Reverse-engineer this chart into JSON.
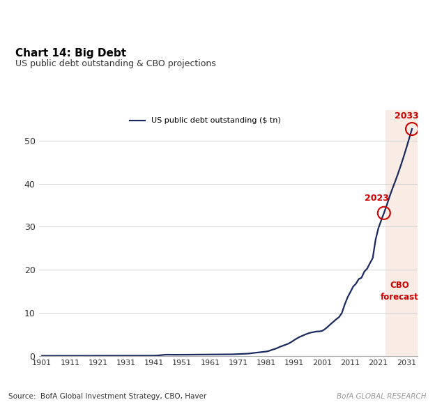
{
  "title": "Chart 14: Big Debt",
  "subtitle": "US public debt outstanding & CBO projections",
  "legend_label": "US public debt outstanding ($ tn)",
  "source_text": "Source:  BofA Global Investment Strategy, CBO, Haver",
  "brand_text": "BofA GLOBAL RESEARCH",
  "line_color": "#1a2a5e",
  "forecast_bg_color": "#f9ece4",
  "forecast_start_year": 2024,
  "annotation_color": "#cc0000",
  "cbo_label": "CBO\nforecast",
  "ylim": [
    0,
    57
  ],
  "yticks": [
    0,
    10,
    20,
    30,
    40,
    50
  ],
  "xlim": [
    1900,
    2035
  ],
  "xtick_years": [
    1901,
    1911,
    1921,
    1931,
    1941,
    1951,
    1961,
    1971,
    1981,
    1991,
    2001,
    2011,
    2021,
    2031
  ],
  "data_years": [
    1901,
    1902,
    1903,
    1904,
    1905,
    1906,
    1907,
    1908,
    1909,
    1910,
    1911,
    1912,
    1913,
    1914,
    1915,
    1916,
    1917,
    1918,
    1919,
    1920,
    1921,
    1922,
    1923,
    1924,
    1925,
    1926,
    1927,
    1928,
    1929,
    1930,
    1931,
    1932,
    1933,
    1934,
    1935,
    1936,
    1937,
    1938,
    1939,
    1940,
    1941,
    1942,
    1943,
    1944,
    1945,
    1946,
    1947,
    1948,
    1949,
    1950,
    1951,
    1952,
    1953,
    1954,
    1955,
    1956,
    1957,
    1958,
    1959,
    1960,
    1961,
    1962,
    1963,
    1964,
    1965,
    1966,
    1967,
    1968,
    1969,
    1970,
    1971,
    1972,
    1973,
    1974,
    1975,
    1976,
    1977,
    1978,
    1979,
    1980,
    1981,
    1982,
    1983,
    1984,
    1985,
    1986,
    1987,
    1988,
    1989,
    1990,
    1991,
    1992,
    1993,
    1994,
    1995,
    1996,
    1997,
    1998,
    1999,
    2000,
    2001,
    2002,
    2003,
    2004,
    2005,
    2006,
    2007,
    2008,
    2009,
    2010,
    2011,
    2012,
    2013,
    2014,
    2015,
    2016,
    2017,
    2018,
    2019,
    2020,
    2021,
    2022,
    2023,
    2024,
    2025,
    2026,
    2027,
    2028,
    2029,
    2030,
    2031,
    2032,
    2033
  ],
  "data_values": [
    0.003,
    0.003,
    0.003,
    0.003,
    0.003,
    0.003,
    0.003,
    0.003,
    0.003,
    0.003,
    0.003,
    0.003,
    0.003,
    0.003,
    0.004,
    0.004,
    0.006,
    0.012,
    0.025,
    0.024,
    0.024,
    0.023,
    0.022,
    0.021,
    0.021,
    0.02,
    0.018,
    0.017,
    0.017,
    0.016,
    0.017,
    0.02,
    0.023,
    0.027,
    0.029,
    0.034,
    0.037,
    0.038,
    0.041,
    0.043,
    0.049,
    0.072,
    0.137,
    0.202,
    0.259,
    0.271,
    0.259,
    0.253,
    0.253,
    0.257,
    0.255,
    0.267,
    0.266,
    0.271,
    0.274,
    0.273,
    0.272,
    0.28,
    0.286,
    0.291,
    0.293,
    0.303,
    0.31,
    0.317,
    0.323,
    0.33,
    0.341,
    0.348,
    0.354,
    0.381,
    0.409,
    0.436,
    0.459,
    0.492,
    0.542,
    0.631,
    0.706,
    0.777,
    0.83,
    0.909,
    0.998,
    1.142,
    1.382,
    1.576,
    1.827,
    2.13,
    2.35,
    2.601,
    2.858,
    3.233,
    3.665,
    4.065,
    4.411,
    4.693,
    4.974,
    5.225,
    5.413,
    5.527,
    5.656,
    5.674,
    5.807,
    6.228,
    6.783,
    7.379,
    7.933,
    8.507,
    9.008,
    9.986,
    11.91,
    13.562,
    14.79,
    16.066,
    16.738,
    17.824,
    18.151,
    19.573,
    20.245,
    21.516,
    22.719,
    26.945,
    29.617,
    31.42,
    33.167,
    35.0,
    37.0,
    38.8,
    40.5,
    42.3,
    44.2,
    46.2,
    48.3,
    50.5,
    52.7
  ]
}
